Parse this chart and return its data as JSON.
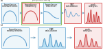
{
  "fig_bg": "#ffffff",
  "preproc_label": "pre-processing",
  "preproc_border": "#88bb66",
  "arrow_color": "#6699bb",
  "row_a_labels": [
    "Impedance\nmeasurement",
    "Impedance\nmodelling",
    "Impedance\nreduction",
    "DRT\ncalculation",
    "peak\nanalysis"
  ],
  "row_b_labels": [
    "Impedance\nmeasurement",
    "DRT\ncalculation",
    "peak\nanalysis"
  ],
  "row_a_border_colors": [
    "#88bbdd",
    "#dd6666",
    "#88bbdd",
    "#dd6666",
    "#dd6666"
  ],
  "row_b_border_colors": [
    "#88bbdd",
    "#88bbdd",
    "#dd6666"
  ],
  "row_a_bg": [
    "#eef6fa",
    "#faeaea",
    "#eef6fa",
    "#faeaea",
    "#faeaea"
  ],
  "row_b_bg": [
    "#eef6fa",
    "#eef6fa",
    "#faeaea"
  ],
  "plot_types_a": [
    "nyquist_blue",
    "nyquist_red",
    "bode_blue",
    "drt_wavy_blue",
    "peaks_red"
  ],
  "plot_types_b": [
    "nyquist_blue",
    "drt_peaks_blue",
    "peaks_red2"
  ],
  "label_a": "a)",
  "label_b": "b)"
}
